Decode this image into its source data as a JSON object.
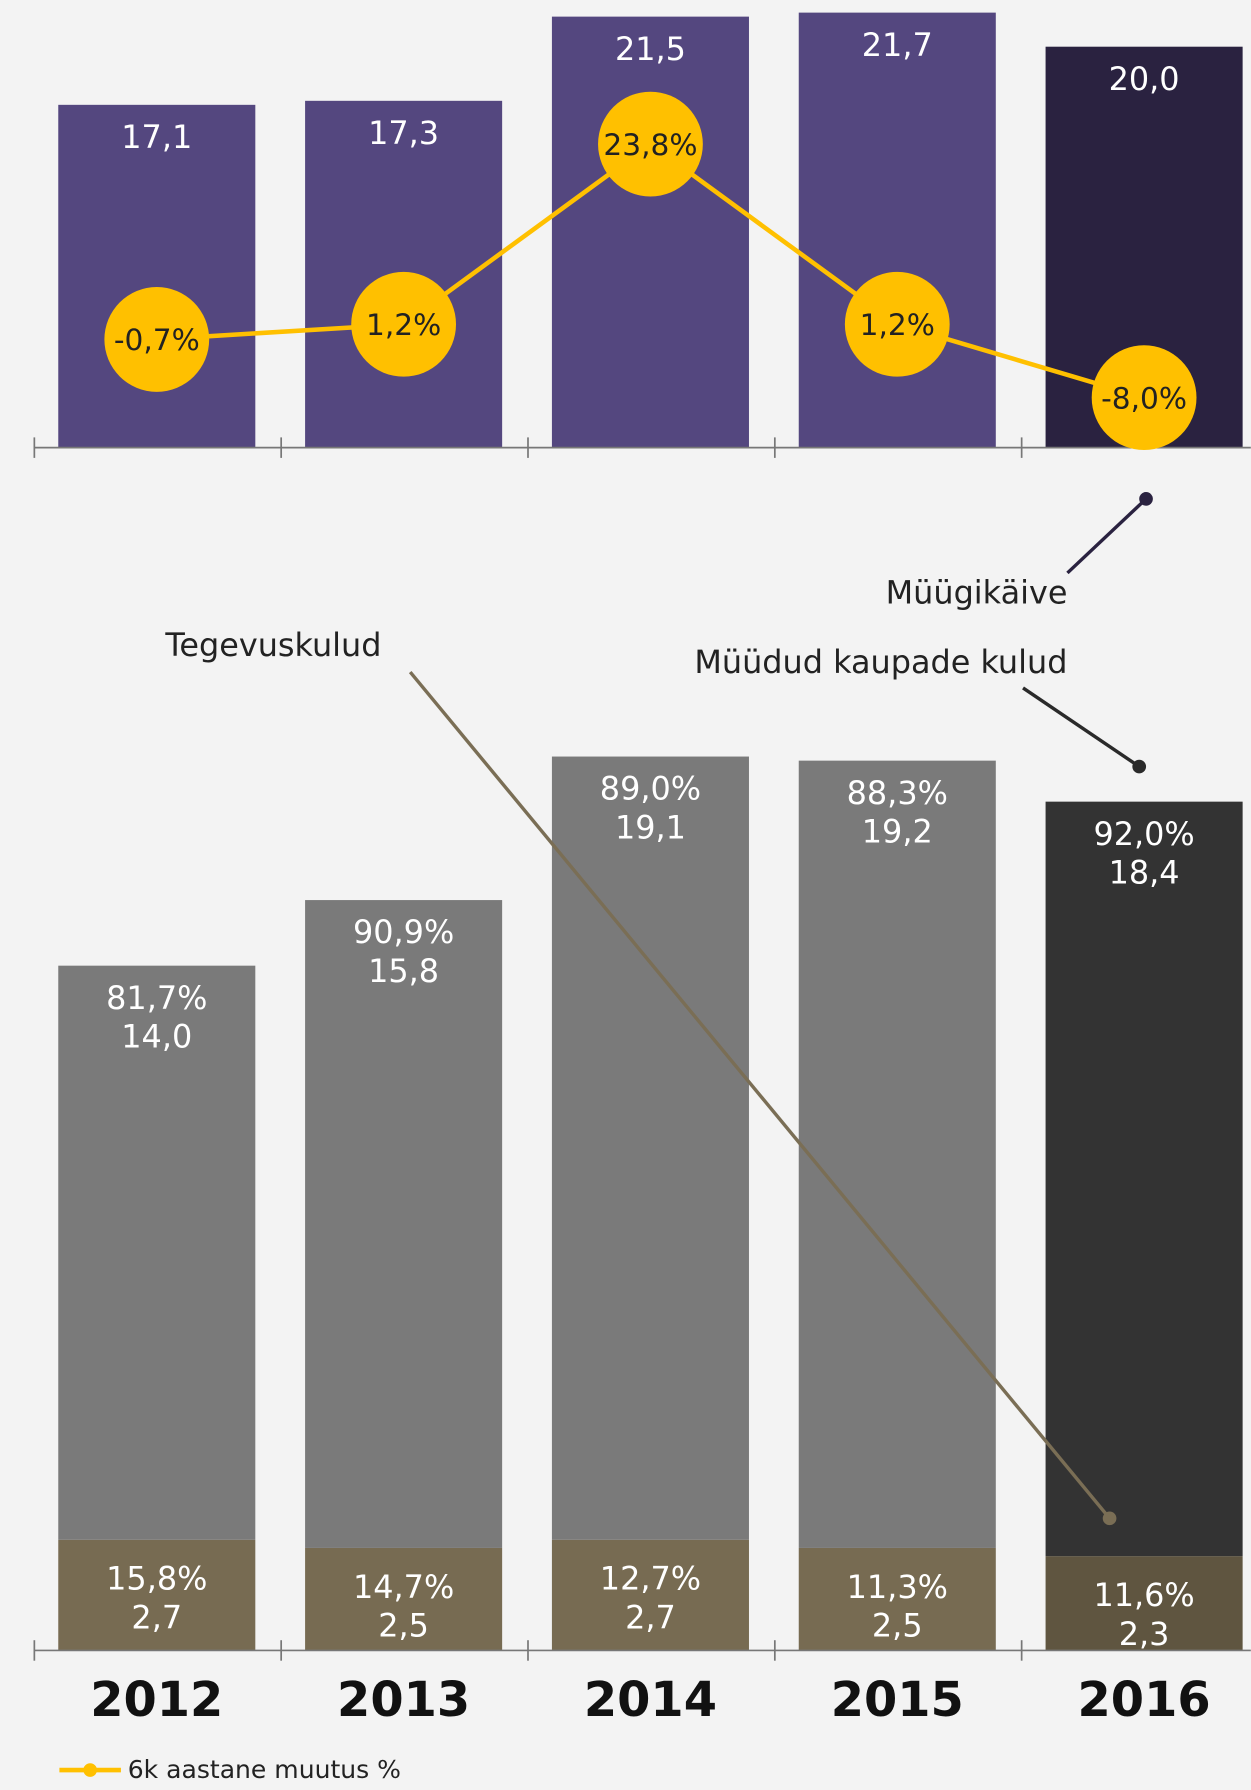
{
  "chart_data": [
    {
      "type": "bar",
      "series": [
        {
          "name": "Müügikäive",
          "values": [
            17.1,
            17.3,
            21.5,
            21.7,
            20.0
          ],
          "value_labels": [
            "17,1",
            "17,3",
            "21,5",
            "21,7",
            "20,0"
          ],
          "colors": [
            "#54477f",
            "#54477f",
            "#54477f",
            "#54477f",
            "#2a2240"
          ]
        },
        {
          "name": "6k aastane muutus %",
          "type": "line",
          "color": "#ffc000",
          "values": [
            -0.7,
            1.2,
            23.8,
            1.2,
            -8.0
          ],
          "value_labels": [
            "-0,7%",
            "1,2%",
            "23,8%",
            "1,2%",
            "-8,0%"
          ]
        }
      ]
    },
    {
      "type": "stacked_bar",
      "categories": [
        "2012",
        "2013",
        "2014",
        "2015",
        "2016"
      ],
      "series": [
        {
          "name": "Tegevuskulud",
          "values": [
            2.7,
            2.5,
            2.7,
            2.5,
            2.3
          ],
          "shares": [
            "15,8%",
            "14,7%",
            "12,7%",
            "11,3%",
            "11,6%"
          ],
          "value_labels": [
            "2,7",
            "2,5",
            "2,7",
            "2,5",
            "2,3"
          ],
          "colors": [
            "#776b52",
            "#776b52",
            "#776b52",
            "#776b52",
            "#5f5540"
          ]
        },
        {
          "name": "Müüdud kaupade kulud",
          "values": [
            14.0,
            15.8,
            19.1,
            19.2,
            18.4
          ],
          "shares": [
            "81,7%",
            "90,9%",
            "89,0%",
            "88,3%",
            "92,0%"
          ],
          "value_labels": [
            "14,0",
            "15,8",
            "19,1",
            "19,2",
            "18,4"
          ],
          "colors": [
            "#7a7a7a",
            "#7a7a7a",
            "#7a7a7a",
            "#7a7a7a",
            "#333333"
          ]
        }
      ]
    }
  ]
}
